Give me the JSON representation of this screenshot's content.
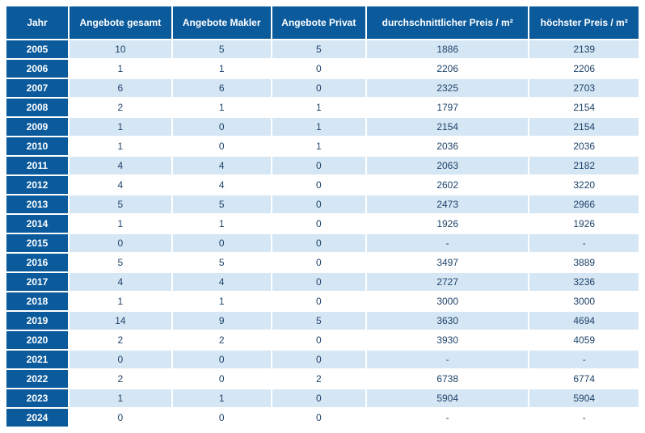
{
  "styling": {
    "header_bg": "#0a5a9c",
    "row_even_bg": "#ffffff",
    "row_odd_bg": "#d5e6f4",
    "data_text_color": "#20446a",
    "header_text_color": "#ffffff",
    "font_size_header": 12,
    "font_size_data": 12
  },
  "columns": [
    "Jahr",
    "Angebote gesamt",
    "Angebote Makler",
    "Angebote Privat",
    "durchschnittlicher Preis / m²",
    "höchster Preis / m²"
  ],
  "rows": [
    {
      "year": "2005",
      "total": "10",
      "makler": "5",
      "privat": "5",
      "avg": "1886",
      "max": "2139"
    },
    {
      "year": "2006",
      "total": "1",
      "makler": "1",
      "privat": "0",
      "avg": "2206",
      "max": "2206"
    },
    {
      "year": "2007",
      "total": "6",
      "makler": "6",
      "privat": "0",
      "avg": "2325",
      "max": "2703"
    },
    {
      "year": "2008",
      "total": "2",
      "makler": "1",
      "privat": "1",
      "avg": "1797",
      "max": "2154"
    },
    {
      "year": "2009",
      "total": "1",
      "makler": "0",
      "privat": "1",
      "avg": "2154",
      "max": "2154"
    },
    {
      "year": "2010",
      "total": "1",
      "makler": "0",
      "privat": "1",
      "avg": "2036",
      "max": "2036"
    },
    {
      "year": "2011",
      "total": "4",
      "makler": "4",
      "privat": "0",
      "avg": "2063",
      "max": "2182"
    },
    {
      "year": "2012",
      "total": "4",
      "makler": "4",
      "privat": "0",
      "avg": "2602",
      "max": "3220"
    },
    {
      "year": "2013",
      "total": "5",
      "makler": "5",
      "privat": "0",
      "avg": "2473",
      "max": "2966"
    },
    {
      "year": "2014",
      "total": "1",
      "makler": "1",
      "privat": "0",
      "avg": "1926",
      "max": "1926"
    },
    {
      "year": "2015",
      "total": "0",
      "makler": "0",
      "privat": "0",
      "avg": "-",
      "max": "-"
    },
    {
      "year": "2016",
      "total": "5",
      "makler": "5",
      "privat": "0",
      "avg": "3497",
      "max": "3889"
    },
    {
      "year": "2017",
      "total": "4",
      "makler": "4",
      "privat": "0",
      "avg": "2727",
      "max": "3236"
    },
    {
      "year": "2018",
      "total": "1",
      "makler": "1",
      "privat": "0",
      "avg": "3000",
      "max": "3000"
    },
    {
      "year": "2019",
      "total": "14",
      "makler": "9",
      "privat": "5",
      "avg": "3630",
      "max": "4694"
    },
    {
      "year": "2020",
      "total": "2",
      "makler": "2",
      "privat": "0",
      "avg": "3930",
      "max": "4059"
    },
    {
      "year": "2021",
      "total": "0",
      "makler": "0",
      "privat": "0",
      "avg": "-",
      "max": "-"
    },
    {
      "year": "2022",
      "total": "2",
      "makler": "0",
      "privat": "2",
      "avg": "6738",
      "max": "6774"
    },
    {
      "year": "2023",
      "total": "1",
      "makler": "1",
      "privat": "0",
      "avg": "5904",
      "max": "5904"
    },
    {
      "year": "2024",
      "total": "0",
      "makler": "0",
      "privat": "0",
      "avg": "-",
      "max": "-"
    }
  ]
}
